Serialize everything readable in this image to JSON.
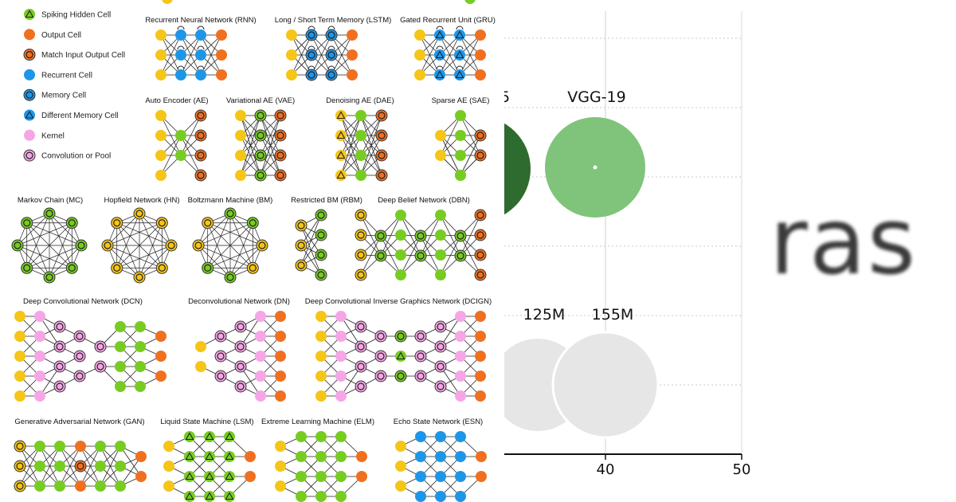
{
  "colors": {
    "input": "#f5c518",
    "hidden": "#77cc22",
    "output": "#f07020",
    "recurrent": "#1e96e8",
    "kernel": "#f6a6e6",
    "edge": "#222222",
    "bubble_dark": "#2e6b2e",
    "bubble_green": "#7fc47a",
    "bubble_grey": "#e6e6e6"
  },
  "legend": [
    {
      "label": "Spiking Hidden Cell",
      "fill": "#77cc22",
      "mark": "triangle"
    },
    {
      "label": "Output Cell",
      "fill": "#f07020",
      "mark": "none"
    },
    {
      "label": "Match Input Output Cell",
      "fill": "#f07020",
      "mark": "ring"
    },
    {
      "label": "Recurrent Cell",
      "fill": "#1e96e8",
      "mark": "none"
    },
    {
      "label": "Memory Cell",
      "fill": "#1e96e8",
      "mark": "ring"
    },
    {
      "label": "Different Memory Cell",
      "fill": "#1e96e8",
      "mark": "triangle"
    },
    {
      "label": "Kernel",
      "fill": "#f6a6e6",
      "mark": "none"
    },
    {
      "label": "Convolution or Pool",
      "fill": "#f6a6e6",
      "mark": "ring"
    }
  ],
  "networks": [
    {
      "title": "Recurrent Neural Network (RNN)"
    },
    {
      "title": "Long / Short Term Memory (LSTM)"
    },
    {
      "title": "Gated Recurrent Unit (GRU)"
    },
    {
      "title": "Auto Encoder (AE)"
    },
    {
      "title": "Variational AE (VAE)"
    },
    {
      "title": "Denoising AE (DAE)"
    },
    {
      "title": "Sparse AE (SAE)"
    },
    {
      "title": "Markov Chain (MC)"
    },
    {
      "title": "Hopfield Network (HN)"
    },
    {
      "title": "Boltzmann Machine (BM)"
    },
    {
      "title": "Restricted BM (RBM)"
    },
    {
      "title": "Deep Belief Network (DBN)"
    },
    {
      "title": "Deep Convolutional Network (DCN)"
    },
    {
      "title": "Deconvolutional Network (DN)"
    },
    {
      "title": "Deep Convolutional Inverse Graphics Network (DCIGN)"
    },
    {
      "title": "Generative Adversarial Network (GAN)"
    },
    {
      "title": "Liquid State Machine (LSM)"
    },
    {
      "title": "Extreme Learning Machine (ELM)"
    },
    {
      "title": "Echo State Network (ESN)"
    }
  ],
  "chart": {
    "bubble_labels": [
      "5",
      "VGG-19",
      "125M",
      "155M"
    ],
    "x_ticks": [
      "40",
      "50"
    ],
    "watermark": "ras"
  }
}
